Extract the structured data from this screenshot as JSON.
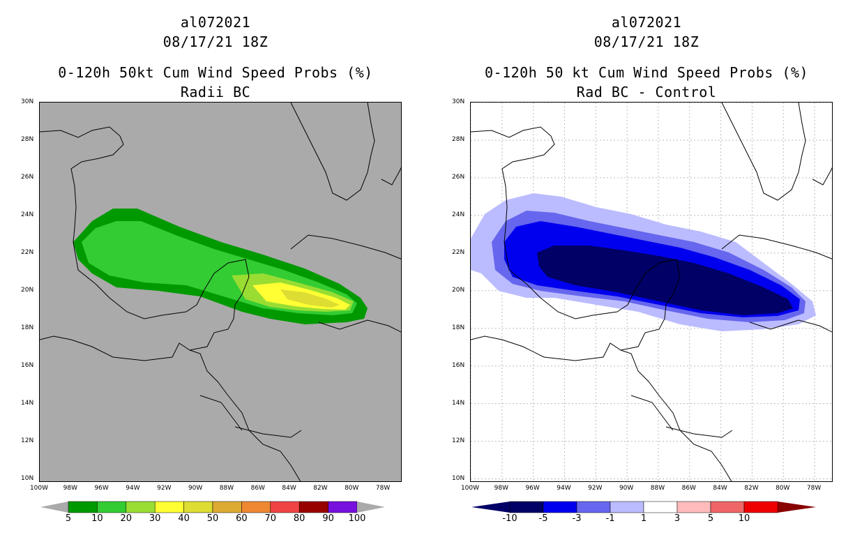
{
  "panels": [
    {
      "storm_id": "al072021",
      "datetime": "08/17/21 18Z",
      "title": "0-120h 50kt Cum Wind Speed Probs (%)",
      "subtitle": "Radii BC",
      "background": "#aaaaaa",
      "legend": {
        "labels": [
          "5",
          "10",
          "20",
          "30",
          "40",
          "50",
          "60",
          "70",
          "80",
          "90",
          "100"
        ],
        "colors": [
          "#009900",
          "#33cc33",
          "#99dd33",
          "#ffff33",
          "#dddd33",
          "#ddaa33",
          "#ee8833",
          "#ee4444",
          "#990000",
          "#7711dd"
        ],
        "end_color": "#aaaaaa"
      },
      "contours": [
        {
          "level": "5",
          "color": "#009900"
        },
        {
          "level": "10",
          "color": "#33cc33"
        },
        {
          "level": "20",
          "color": "#99dd33"
        },
        {
          "level": "30",
          "color": "#ffff33"
        },
        {
          "level": "40",
          "color": "#dddd33"
        }
      ]
    },
    {
      "storm_id": "al072021",
      "datetime": "08/17/21 18Z",
      "title": "0-120h 50 kt Cum Wind Speed Probs (%)",
      "subtitle": "Rad BC - Control",
      "background": "#ffffff",
      "legend": {
        "labels": [
          "-10",
          "-5",
          "-3",
          "-1",
          "1",
          "3",
          "5",
          "10"
        ],
        "colors": [
          "#000066",
          "#0000ee",
          "#6666ee",
          "#bbbbff",
          "#ffffff",
          "#ffbbbb",
          "#ee6666",
          "#ee0000",
          "#880000"
        ],
        "end_color": "#000066"
      },
      "contours": [
        {
          "level": "-1",
          "color": "#bbbbff"
        },
        {
          "level": "-3",
          "color": "#6666ee"
        },
        {
          "level": "-5",
          "color": "#0000ee"
        },
        {
          "level": "-10",
          "color": "#000066"
        }
      ]
    }
  ],
  "axes": {
    "lat_labels": [
      "30N",
      "28N",
      "26N",
      "24N",
      "22N",
      "20N",
      "18N",
      "16N",
      "14N",
      "12N",
      "10N"
    ],
    "lat_values": [
      30,
      28,
      26,
      24,
      22,
      20,
      18,
      16,
      14,
      12,
      10
    ],
    "lon_labels": [
      "100W",
      "98W",
      "96W",
      "94W",
      "92W",
      "90W",
      "88W",
      "86W",
      "84W",
      "82W",
      "80W",
      "78W"
    ],
    "lon_values": [
      -100,
      -98,
      -96,
      -94,
      -92,
      -90,
      -88,
      -86,
      -84,
      -82,
      -80,
      -78
    ],
    "lat_range": [
      9.8,
      30.0
    ],
    "lon_range": [
      -100.0,
      -76.8
    ]
  }
}
